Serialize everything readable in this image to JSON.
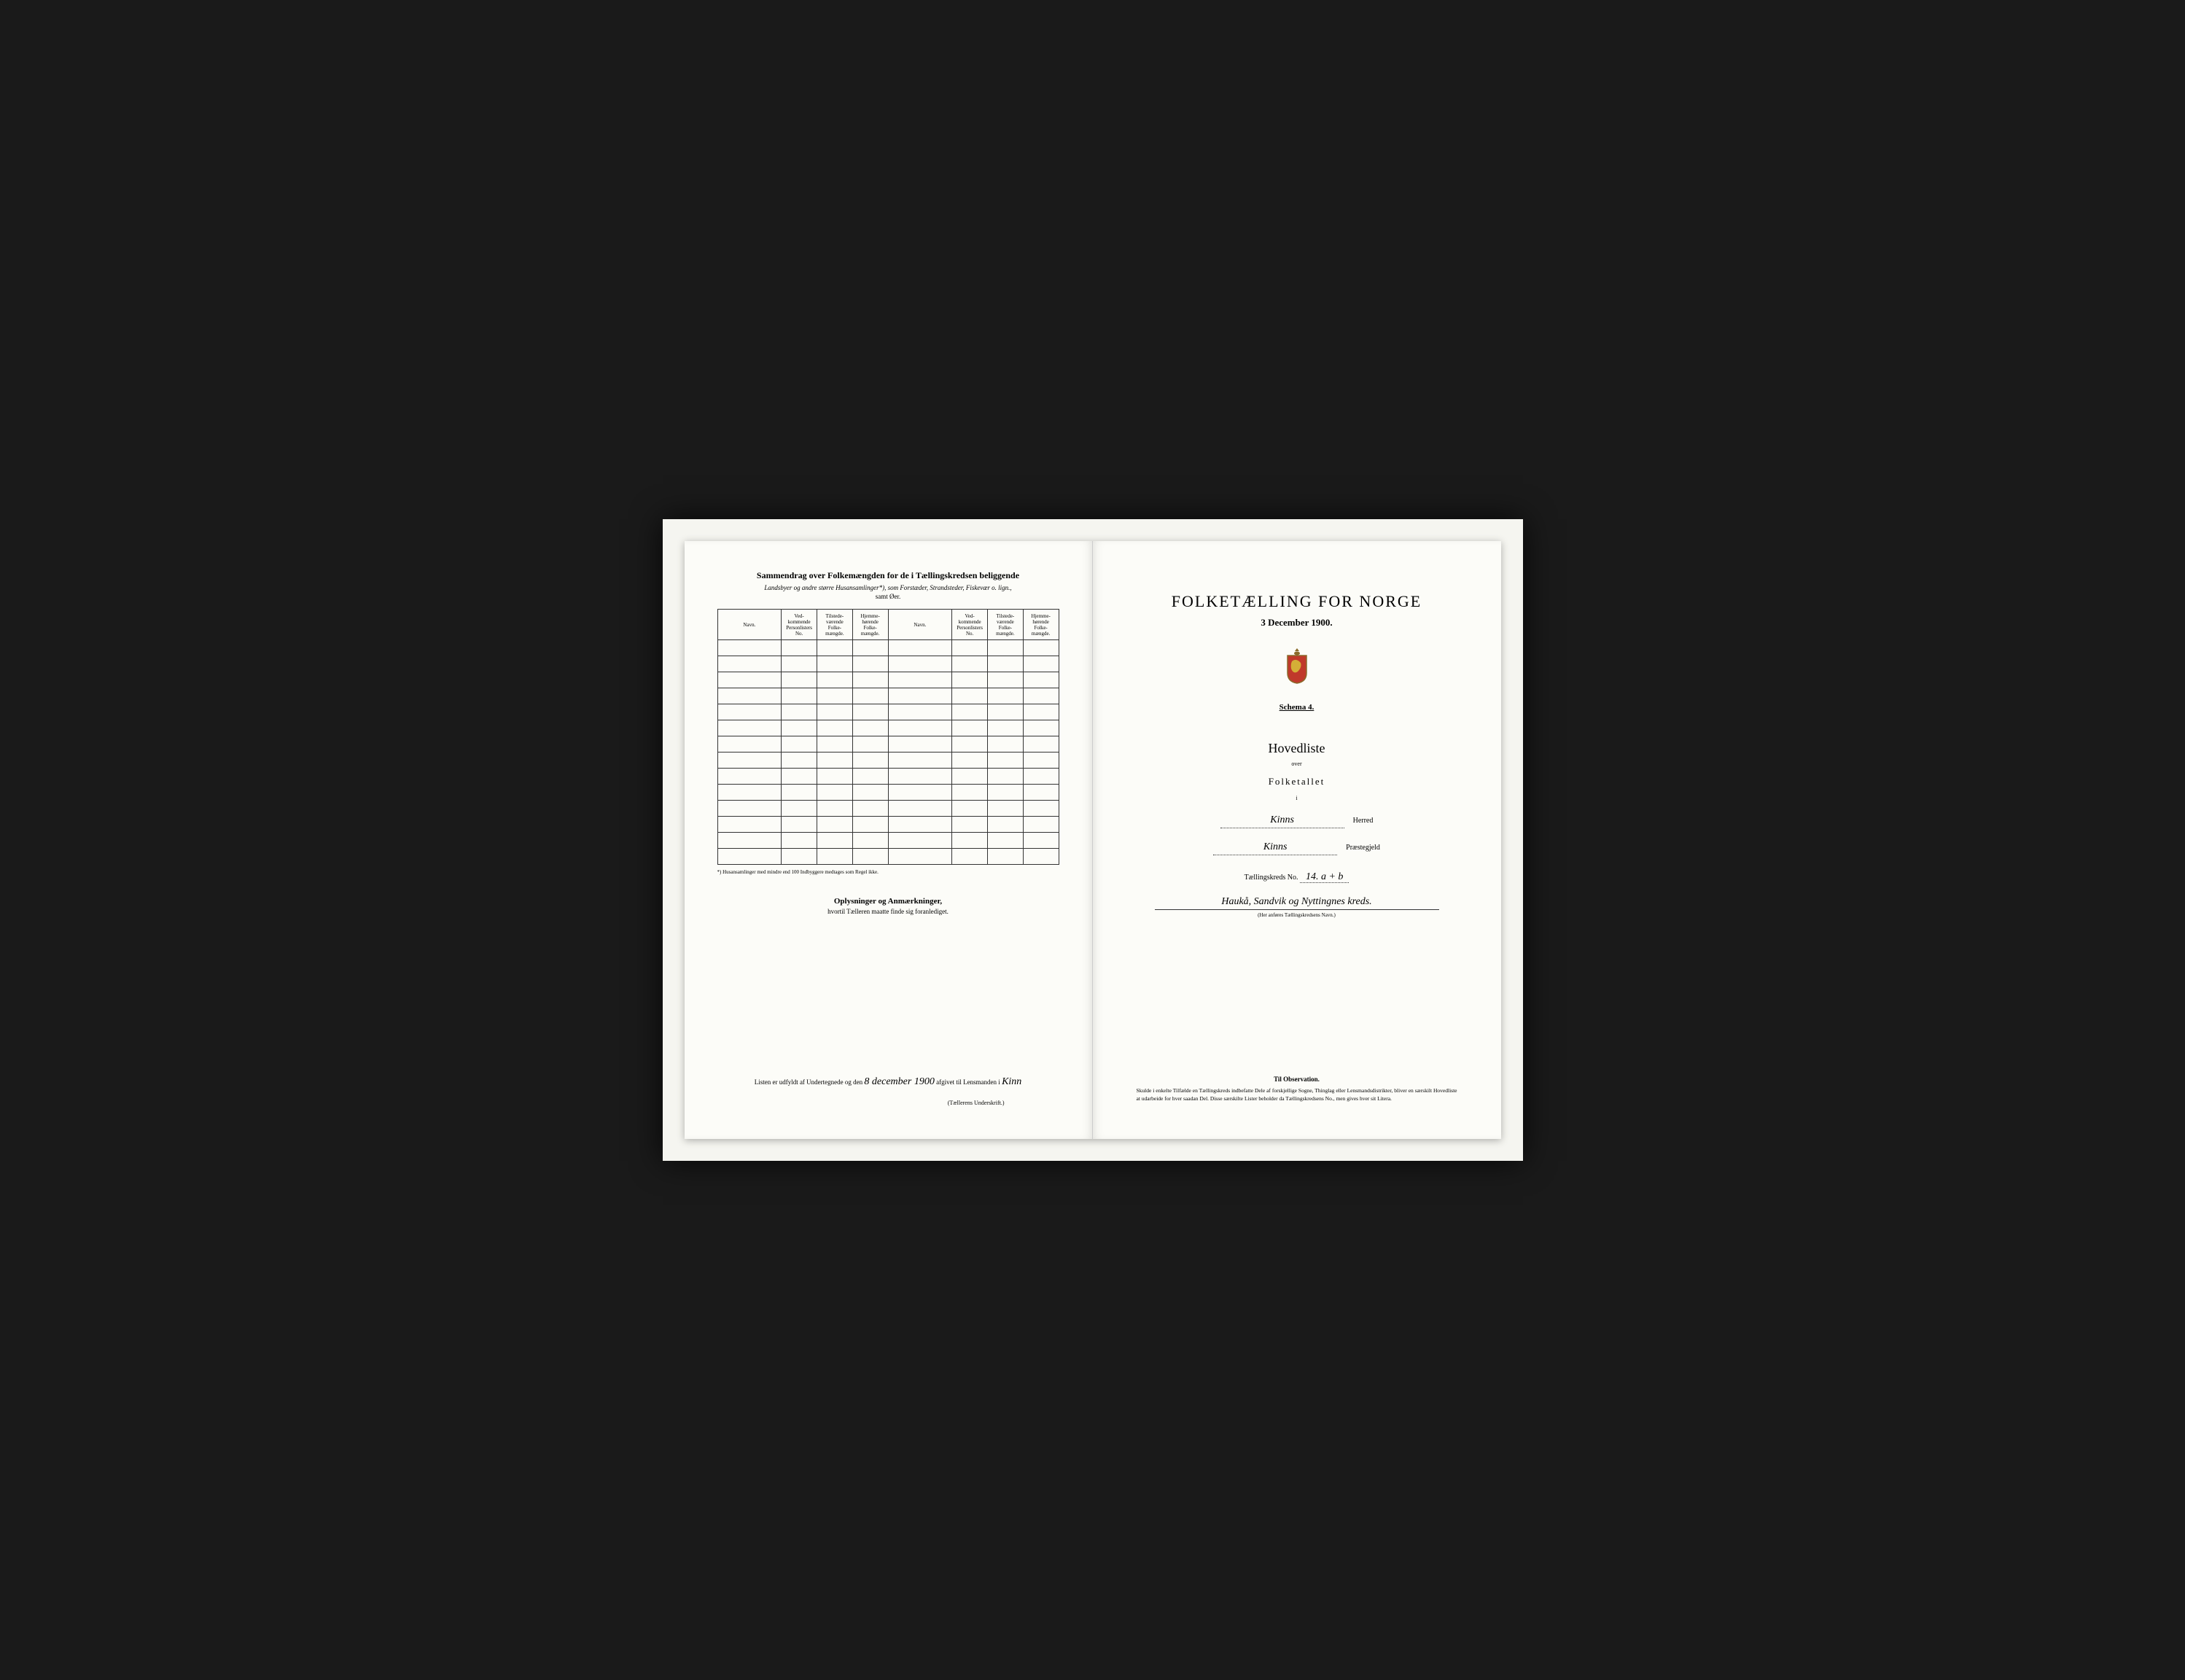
{
  "frame": {
    "background_color": "#1a1a1a",
    "mat_color": "#f5f5f0",
    "page_color": "#fcfcf8"
  },
  "left_page": {
    "summary_title": "Sammendrag over Folkemængden for de i Tællingskredsen beliggende",
    "summary_subtitle1": "Landsbyer og andre større Husansamlinger*), som Forstæder, Strandsteder, Fiskevær o. lign.,",
    "summary_subtitle2": "samt Øer.",
    "table": {
      "columns": [
        "Navn.",
        "Ved-kommende Personlisters No.",
        "Tilstede-værende Folke-mængde.",
        "Hjemme-hørende Folke-mængde.",
        "Navn.",
        "Ved-kommende Personlisters No.",
        "Tilstede-værende Folke-mængde.",
        "Hjemme-hørende Folke-mængde."
      ],
      "row_count": 14,
      "border_color": "#333333"
    },
    "footnote": "*) Husansamlinger med mindre end 100 Indbyggere medtages som Regel ikke.",
    "oplysninger_title": "Oplysninger og Anmærkninger,",
    "oplysninger_sub": "hvortil Tælleren maatte finde sig foranlediget.",
    "signature_line_prefix": "Listen er udfyldt af Undertegnede og den",
    "signature_date": "8 december 1900",
    "signature_line_mid": "afgivet til Lensmanden i",
    "signature_place": "Kinn",
    "signature_underscript": "(Tællerens Underskrift.)"
  },
  "right_page": {
    "census_title": "FOLKETÆLLING FOR NORGE",
    "census_date": "3 December 1900.",
    "coat_of_arms_color": "#8a6a2a",
    "schema": "Schema 4.",
    "hovedliste": "Hovedliste",
    "over": "over",
    "folketallet": "Folketallet",
    "i": "i",
    "herred_value": "Kinns",
    "herred_label": "Herred",
    "prestegjeld_value": "Kinns",
    "prestegjeld_label": "Præstegjeld",
    "tkreds_label": "Tællingskreds No.",
    "tkreds_no": "14. a + b",
    "tkreds_name": "Haukå, Sandvik og Nyttingnes kreds.",
    "tkreds_under": "(Her anføres Tællingskredsens Navn.)",
    "observation_title": "Til Observation.",
    "observation_text": "Skulde i enkelte Tilfælde en Tællingskreds indbefatte Dele af forskjellige Sogne, Thinglag eller Lensmandsdistrikter, bliver en særskilt Hovedliste at udarbeide for hver saadan Del. Disse særskilte Lister beholder da Tællingskredsens No., men gives hver sit Litera."
  }
}
